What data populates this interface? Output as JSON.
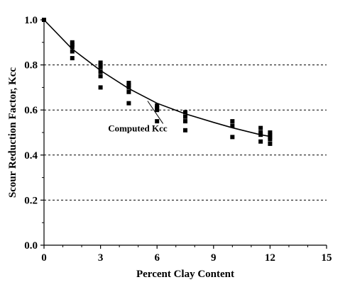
{
  "chart_data": {
    "type": "scatter",
    "title": "",
    "xlabel": "Percent Clay Content",
    "ylabel": "Scour Reduction Factor, Kcc",
    "xlim": [
      0,
      15
    ],
    "ylim": [
      0.0,
      1.0
    ],
    "x_ticks": [
      0,
      3,
      6,
      9,
      12,
      15
    ],
    "y_ticks": [
      0.0,
      0.2,
      0.4,
      0.6,
      0.8,
      1.0
    ],
    "x_tick_labels": [
      "0",
      "3",
      "6",
      "9",
      "12",
      "15"
    ],
    "y_tick_labels": [
      "0.0",
      "0.2",
      "0.4",
      "0.6",
      "0.8",
      "1.0"
    ],
    "grid": "horizontal-dashed",
    "legend": "none",
    "series": [
      {
        "kind": "markers",
        "marker": "square",
        "color": "#000000",
        "points": [
          [
            0,
            1.0
          ],
          [
            1.5,
            0.9
          ],
          [
            1.5,
            0.89
          ],
          [
            1.5,
            0.88
          ],
          [
            1.5,
            0.86
          ],
          [
            1.5,
            0.83
          ],
          [
            3,
            0.81
          ],
          [
            3,
            0.8
          ],
          [
            3,
            0.79
          ],
          [
            3,
            0.77
          ],
          [
            3,
            0.75
          ],
          [
            3,
            0.7
          ],
          [
            4.5,
            0.72
          ],
          [
            4.5,
            0.71
          ],
          [
            4.5,
            0.7
          ],
          [
            4.5,
            0.68
          ],
          [
            4.5,
            0.63
          ],
          [
            6,
            0.62
          ],
          [
            6,
            0.61
          ],
          [
            6,
            0.6
          ],
          [
            6,
            0.55
          ],
          [
            7.5,
            0.59
          ],
          [
            7.5,
            0.57
          ],
          [
            7.5,
            0.55
          ],
          [
            7.5,
            0.51
          ],
          [
            10,
            0.55
          ],
          [
            10,
            0.53
          ],
          [
            10,
            0.48
          ],
          [
            11.5,
            0.52
          ],
          [
            11.5,
            0.5
          ],
          [
            11.5,
            0.49
          ],
          [
            11.5,
            0.46
          ],
          [
            12,
            0.5
          ],
          [
            12,
            0.49
          ],
          [
            12,
            0.48
          ],
          [
            12,
            0.47
          ],
          [
            12,
            0.45
          ]
        ]
      },
      {
        "kind": "line",
        "color": "#000000",
        "points": [
          [
            0,
            1.0
          ],
          [
            1.5,
            0.87
          ],
          [
            3,
            0.775
          ],
          [
            4.5,
            0.695
          ],
          [
            6,
            0.63
          ],
          [
            7.5,
            0.583
          ],
          [
            9,
            0.545
          ],
          [
            10,
            0.521
          ],
          [
            11.5,
            0.49
          ],
          [
            12,
            0.483
          ]
        ]
      }
    ],
    "annotations": [
      {
        "text": "Computed Kcc",
        "label_at": [
          3.4,
          0.505
        ],
        "points_to": [
          5.5,
          0.64
        ]
      }
    ]
  }
}
